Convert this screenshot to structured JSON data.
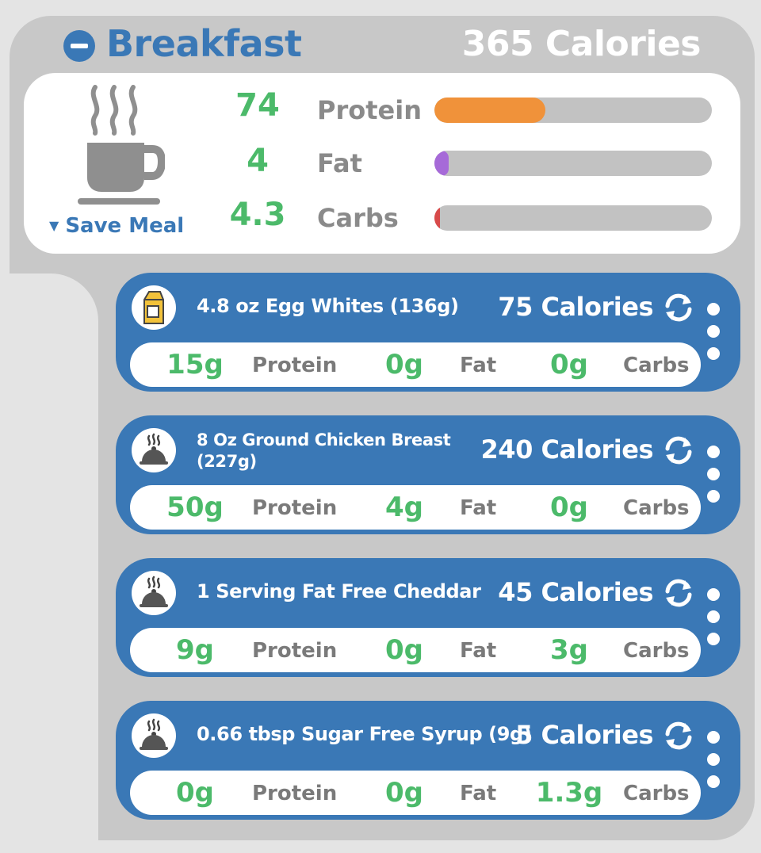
{
  "meal": {
    "title": "Breakfast",
    "calories": "365 Calories",
    "save_label": "Save Meal",
    "macros": [
      {
        "value": "74",
        "label": "Protein",
        "color": "#f0923a",
        "fill": 0.4
      },
      {
        "value": "4",
        "label": "Fat",
        "color": "#a66ad8",
        "fill": 0.05
      },
      {
        "value": "4.3",
        "label": "Carbs",
        "color": "#d84a4a",
        "fill": 0.02
      }
    ]
  },
  "foods": [
    {
      "name": "4.8 oz Egg Whites  (136g)",
      "calories": "75 Calories",
      "icon": "milk-carton-icon",
      "protein": "15g",
      "protein_label": "Protein",
      "fat": "0g",
      "fat_label": "Fat",
      "carbs": "0g",
      "carbs_label": "Carbs"
    },
    {
      "name": "8 Oz Ground Chicken Breast (227g)",
      "calories": "240 Calories",
      "icon": "cloche-icon",
      "protein": "50g",
      "protein_label": "Protein",
      "fat": "4g",
      "fat_label": "Fat",
      "carbs": "0g",
      "carbs_label": "Carbs"
    },
    {
      "name": "1 Serving Fat Free Cheddar",
      "calories": "45 Calories",
      "icon": "cloche-icon",
      "protein": "9g",
      "protein_label": "Protein",
      "fat": "0g",
      "fat_label": "Fat",
      "carbs": "3g",
      "carbs_label": "Carbs"
    },
    {
      "name": "0.66 tbsp Sugar Free Syrup  (9g)",
      "calories": "5 Calories",
      "icon": "cloche-icon",
      "protein": "0g",
      "protein_label": "Protein",
      "fat": "0g",
      "fat_label": "Fat",
      "carbs": "1.3g",
      "carbs_label": "Carbs"
    }
  ]
}
